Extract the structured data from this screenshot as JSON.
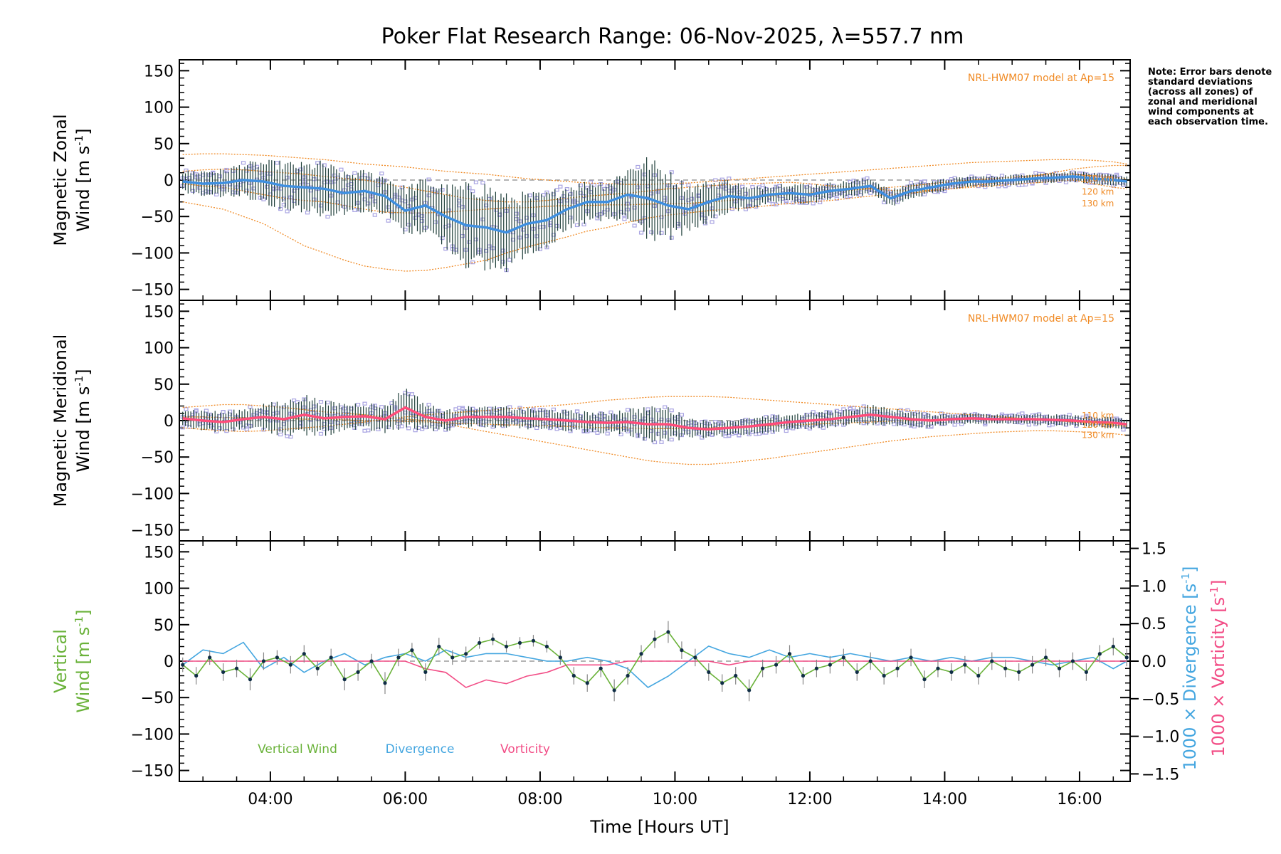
{
  "title": "Poker Flat Research Range: 06-Nov-2025, λ=557.7 nm",
  "side_note": "Note: Error bars denote standard deviations (across all zones) of zonal and meridional wind components at each observation time.",
  "x_axis": {
    "label": "Time [Hours UT]",
    "range": [
      2.65,
      16.75
    ],
    "ticks": [
      4,
      6,
      8,
      10,
      12,
      14,
      16
    ],
    "tick_labels": [
      "04:00",
      "06:00",
      "08:00",
      "10:00",
      "12:00",
      "14:00",
      "16:00"
    ]
  },
  "colors": {
    "zonal_mean": "#3f8fe0",
    "meridional_mean": "#ff4d7a",
    "scatter": "#a9a4e2",
    "model": "#f08a24",
    "errorbar": "#1f3f3a",
    "vertical": "#6ab23a",
    "divergence": "#44a6e0",
    "vorticity": "#f24d86",
    "points": "#0f2d45"
  },
  "chart_data": [
    {
      "id": "zonal",
      "type": "line",
      "ylabel_line1": "Magnetic Zonal",
      "ylabel_line2": "Wind [m s",
      "ylabel_exp": "-1",
      "ylabel_close": "]",
      "ylim": [
        -165,
        165
      ],
      "yticks": [
        -150,
        -100,
        -50,
        0,
        50,
        100,
        150
      ],
      "model_label": "NRL-HWM07 model at Ap=15",
      "model_heights": [
        "110 km",
        "120 km",
        "130 km"
      ],
      "x": [
        2.7,
        3.0,
        3.3,
        3.6,
        3.9,
        4.2,
        4.5,
        4.8,
        5.1,
        5.4,
        5.7,
        6.0,
        6.3,
        6.6,
        6.9,
        7.2,
        7.5,
        7.8,
        8.1,
        8.4,
        8.7,
        9.0,
        9.3,
        9.6,
        9.9,
        10.2,
        10.5,
        10.8,
        11.1,
        11.4,
        11.7,
        12.0,
        12.3,
        12.6,
        12.9,
        13.2,
        13.5,
        13.8,
        14.1,
        14.4,
        14.7,
        15.0,
        15.3,
        15.6,
        15.9,
        16.2,
        16.5,
        16.7
      ],
      "mean": [
        -2,
        -5,
        -4,
        0,
        -2,
        -8,
        -10,
        -12,
        -18,
        -15,
        -22,
        -42,
        -35,
        -50,
        -62,
        -65,
        -72,
        -60,
        -55,
        -40,
        -30,
        -30,
        -20,
        -25,
        -35,
        -40,
        -30,
        -22,
        -25,
        -20,
        -18,
        -20,
        -15,
        -12,
        -8,
        -25,
        -15,
        -10,
        -5,
        -2,
        -2,
        0,
        2,
        3,
        5,
        2,
        0,
        -2
      ],
      "spread": [
        15,
        20,
        20,
        25,
        30,
        35,
        35,
        40,
        30,
        30,
        30,
        35,
        40,
        45,
        60,
        65,
        55,
        45,
        40,
        35,
        30,
        30,
        40,
        60,
        50,
        35,
        30,
        25,
        15,
        15,
        15,
        15,
        12,
        12,
        12,
        12,
        12,
        10,
        8,
        8,
        8,
        8,
        8,
        8,
        8,
        8,
        8,
        8
      ],
      "model_110": [
        -5,
        -8,
        -10,
        -15,
        -20,
        -25,
        -28,
        -30,
        -35,
        -40,
        -44,
        -45,
        -45,
        -44,
        -42,
        -40,
        -38,
        -38,
        -36,
        -35,
        -35,
        -34,
        -34,
        -33,
        -32,
        -32,
        -30,
        -28,
        -25,
        -22,
        -20,
        -18,
        -16,
        -14,
        -12,
        -10,
        -8,
        -5,
        -2,
        0,
        2,
        4,
        6,
        8,
        8,
        6,
        4,
        2
      ],
      "model_120": [
        12,
        14,
        15,
        14,
        12,
        10,
        8,
        5,
        2,
        0,
        -5,
        -10,
        -15,
        -20,
        -25,
        -28,
        -30,
        -30,
        -28,
        -25,
        -22,
        -20,
        -18,
        -15,
        -12,
        -10,
        -8,
        -6,
        -5,
        -4,
        -3,
        -5,
        -8,
        -10,
        -12,
        -14,
        -15,
        -14,
        -12,
        -10,
        -8,
        -6,
        -4,
        -2,
        0,
        -5,
        -10,
        -12
      ],
      "model_130": [
        -30,
        -35,
        -40,
        -50,
        -60,
        -75,
        -90,
        -100,
        -110,
        -118,
        -122,
        -125,
        -124,
        -120,
        -115,
        -110,
        -100,
        -92,
        -85,
        -78,
        -70,
        -65,
        -58,
        -52,
        -48,
        -45,
        -42,
        -40,
        -38,
        -35,
        -32,
        -30,
        -28,
        -25,
        -22,
        -20,
        -18,
        -15,
        -12,
        -8,
        -5,
        0,
        5,
        10,
        15,
        18,
        20,
        20
      ],
      "model_top": [
        35,
        36,
        36,
        35,
        34,
        32,
        30,
        28,
        25,
        22,
        20,
        18,
        15,
        12,
        10,
        8,
        5,
        2,
        0,
        -2,
        -4,
        -5,
        -6,
        -6,
        -5,
        -4,
        -2,
        0,
        2,
        4,
        6,
        8,
        10,
        12,
        14,
        16,
        18,
        20,
        22,
        24,
        25,
        26,
        27,
        28,
        28,
        27,
        25,
        22
      ]
    },
    {
      "id": "meridional",
      "type": "line",
      "ylabel_line1": "Magnetic Meridional",
      "ylabel_line2": "Wind [m s",
      "ylabel_exp": "-1",
      "ylabel_close": "]",
      "ylim": [
        -165,
        165
      ],
      "yticks": [
        -150,
        -100,
        -50,
        0,
        50,
        100,
        150
      ],
      "model_label": "NRL-HWM07 model at Ap=15",
      "model_heights": [
        "110 km",
        "120 km",
        "130 km"
      ],
      "x": [
        2.7,
        3.0,
        3.3,
        3.6,
        3.9,
        4.2,
        4.5,
        4.8,
        5.1,
        5.4,
        5.7,
        6.0,
        6.3,
        6.6,
        6.9,
        7.2,
        7.5,
        7.8,
        8.1,
        8.4,
        8.7,
        9.0,
        9.3,
        9.6,
        9.9,
        10.2,
        10.5,
        10.8,
        11.1,
        11.4,
        11.7,
        12.0,
        12.3,
        12.6,
        12.9,
        13.2,
        13.5,
        13.8,
        14.1,
        14.4,
        14.7,
        15.0,
        15.3,
        15.6,
        15.9,
        16.2,
        16.5,
        16.7
      ],
      "mean": [
        3,
        0,
        -2,
        2,
        5,
        2,
        8,
        3,
        5,
        6,
        2,
        18,
        5,
        0,
        5,
        5,
        5,
        3,
        2,
        0,
        -2,
        -3,
        -2,
        -5,
        -5,
        -10,
        -12,
        -10,
        -8,
        -5,
        -2,
        0,
        2,
        5,
        8,
        5,
        2,
        0,
        2,
        3,
        2,
        2,
        2,
        1,
        0,
        -2,
        -3,
        -5
      ],
      "spread": [
        15,
        15,
        15,
        15,
        20,
        25,
        30,
        25,
        20,
        20,
        20,
        30,
        20,
        15,
        15,
        15,
        15,
        15,
        15,
        15,
        15,
        15,
        20,
        25,
        25,
        15,
        12,
        12,
        12,
        12,
        12,
        12,
        12,
        12,
        15,
        12,
        12,
        10,
        8,
        8,
        8,
        8,
        8,
        8,
        8,
        8,
        8,
        8
      ],
      "model_110": [
        5,
        5,
        4,
        4,
        3,
        3,
        2,
        2,
        1,
        0,
        0,
        -1,
        -2,
        -3,
        -4,
        -5,
        -6,
        -6,
        -7,
        -8,
        -9,
        -10,
        -10,
        -11,
        -11,
        -11,
        -10,
        -9,
        -8,
        -7,
        -6,
        -5,
        -4,
        -3,
        -2,
        -1,
        0,
        1,
        2,
        2,
        3,
        3,
        2,
        1,
        0,
        -2,
        -4,
        -6
      ],
      "model_120": [
        18,
        20,
        22,
        22,
        20,
        18,
        15,
        12,
        10,
        8,
        5,
        2,
        0,
        -5,
        -10,
        -15,
        -20,
        -25,
        -30,
        -35,
        -40,
        -45,
        -50,
        -55,
        -58,
        -60,
        -60,
        -58,
        -55,
        -52,
        -48,
        -44,
        -40,
        -36,
        -32,
        -28,
        -25,
        -22,
        -20,
        -18,
        -16,
        -15,
        -14,
        -14,
        -15,
        -16,
        -18,
        -20
      ],
      "model_130": [
        -10,
        -12,
        -14,
        -15,
        -14,
        -12,
        -10,
        -8,
        -5,
        -2,
        2,
        5,
        8,
        10,
        12,
        14,
        16,
        18,
        20,
        22,
        25,
        28,
        30,
        32,
        33,
        33,
        33,
        32,
        30,
        28,
        26,
        24,
        22,
        20,
        18,
        16,
        14,
        12,
        10,
        8,
        6,
        4,
        2,
        0,
        -2,
        -4,
        -6,
        -8
      ]
    },
    {
      "id": "vertical",
      "type": "line",
      "ylabel_line1": "Vertical",
      "ylabel_line2": "Wind [m s",
      "ylabel_exp": "-1",
      "ylabel_close": "]",
      "ylim": [
        -165,
        165
      ],
      "yticks": [
        -150,
        -100,
        -50,
        0,
        50,
        100,
        150
      ],
      "right_ylim": [
        -1.6,
        1.6
      ],
      "right_yticks": [
        -1.5,
        -1.0,
        -0.5,
        0.0,
        0.5,
        1.0,
        1.5
      ],
      "right_ytick_labels": [
        "−1.5",
        "−1.0",
        "−0.5",
        "0.0",
        "0.5",
        "1.0",
        "1.5"
      ],
      "right_label_1": "1000 × Divergence [s",
      "right_label_2": "1000 × Vorticity [s",
      "right_label_exp": "-1",
      "right_label_close": "]",
      "legend": [
        "Vertical Wind",
        "Divergence",
        "Vorticity"
      ],
      "vertical": {
        "x": [
          2.7,
          2.9,
          3.1,
          3.3,
          3.5,
          3.7,
          3.9,
          4.1,
          4.3,
          4.5,
          4.7,
          4.9,
          5.1,
          5.3,
          5.5,
          5.7,
          5.9,
          6.1,
          6.3,
          6.5,
          6.7,
          6.9,
          7.1,
          7.3,
          7.5,
          7.7,
          7.9,
          8.1,
          8.3,
          8.5,
          8.7,
          8.9,
          9.1,
          9.3,
          9.5,
          9.7,
          9.9,
          10.1,
          10.3,
          10.5,
          10.7,
          10.9,
          11.1,
          11.3,
          11.5,
          11.7,
          11.9,
          12.1,
          12.3,
          12.5,
          12.7,
          12.9,
          13.1,
          13.3,
          13.5,
          13.7,
          13.9,
          14.1,
          14.3,
          14.5,
          14.7,
          14.9,
          15.1,
          15.3,
          15.5,
          15.7,
          15.9,
          16.1,
          16.3,
          16.5,
          16.7
        ],
        "y": [
          -5,
          -20,
          5,
          -15,
          -10,
          -25,
          0,
          5,
          -5,
          10,
          -10,
          5,
          -25,
          -15,
          0,
          -30,
          5,
          15,
          -15,
          20,
          5,
          10,
          25,
          30,
          20,
          25,
          28,
          20,
          5,
          -20,
          -30,
          -10,
          -40,
          -20,
          10,
          30,
          40,
          15,
          5,
          -15,
          -30,
          -20,
          -40,
          -10,
          -5,
          10,
          -20,
          -10,
          -5,
          5,
          -15,
          0,
          -20,
          -10,
          5,
          -25,
          -10,
          -15,
          -5,
          -20,
          0,
          -10,
          -15,
          -5,
          5,
          -10,
          0,
          -15,
          10,
          20,
          5
        ],
        "err": [
          10,
          12,
          10,
          12,
          12,
          15,
          12,
          10,
          12,
          12,
          10,
          12,
          15,
          12,
          10,
          15,
          12,
          10,
          12,
          12,
          10,
          10,
          8,
          8,
          8,
          8,
          8,
          8,
          10,
          12,
          12,
          12,
          15,
          12,
          12,
          12,
          15,
          12,
          12,
          12,
          12,
          12,
          15,
          12,
          12,
          12,
          12,
          12,
          12,
          12,
          12,
          12,
          12,
          12,
          12,
          12,
          12,
          12,
          12,
          12,
          12,
          12,
          12,
          12,
          12,
          12,
          12,
          12,
          12,
          12,
          12
        ]
      },
      "divergence": {
        "x": [
          2.7,
          3.0,
          3.3,
          3.6,
          3.9,
          4.2,
          4.5,
          4.8,
          5.1,
          5.4,
          5.7,
          6.0,
          6.3,
          6.6,
          6.9,
          7.2,
          7.5,
          7.8,
          8.1,
          8.4,
          8.7,
          9.0,
          9.3,
          9.6,
          9.9,
          10.2,
          10.5,
          10.8,
          11.1,
          11.4,
          11.7,
          12.0,
          12.3,
          12.6,
          12.9,
          13.2,
          13.5,
          13.8,
          14.1,
          14.4,
          14.7,
          15.0,
          15.3,
          15.6,
          15.9,
          16.2,
          16.5,
          16.7
        ],
        "y": [
          -0.05,
          0.15,
          0.1,
          0.25,
          -0.1,
          0.05,
          -0.15,
          0.0,
          0.1,
          -0.05,
          0.05,
          0.1,
          0.0,
          0.15,
          0.05,
          0.1,
          0.1,
          0.05,
          0.0,
          0.0,
          0.05,
          0.0,
          -0.1,
          -0.35,
          -0.2,
          0.0,
          0.2,
          0.1,
          0.05,
          0.15,
          0.05,
          0.1,
          0.05,
          0.1,
          0.05,
          0.0,
          0.05,
          0.0,
          0.05,
          0.0,
          0.05,
          0.05,
          0.0,
          -0.05,
          0.0,
          0.05,
          -0.1,
          0.0
        ]
      },
      "vorticity": {
        "x": [
          2.7,
          3.0,
          3.3,
          3.6,
          3.9,
          4.2,
          4.5,
          4.8,
          5.1,
          5.4,
          5.7,
          6.0,
          6.3,
          6.6,
          6.9,
          7.2,
          7.5,
          7.8,
          8.1,
          8.4,
          8.7,
          9.0,
          9.3,
          9.6,
          9.9,
          10.2,
          10.5,
          10.8,
          11.1,
          11.4,
          11.7,
          12.0,
          12.3,
          12.6,
          12.9,
          13.2,
          13.5,
          13.8,
          14.1,
          14.4,
          14.7,
          15.0,
          15.3,
          15.6,
          15.9,
          16.2,
          16.5,
          16.7
        ],
        "y": [
          0.0,
          0.0,
          0.0,
          0.0,
          0.0,
          0.0,
          0.0,
          0.0,
          0.0,
          0.0,
          0.0,
          0.0,
          -0.1,
          -0.15,
          -0.35,
          -0.25,
          -0.3,
          -0.2,
          -0.15,
          -0.05,
          -0.05,
          -0.05,
          0.0,
          0.0,
          0.0,
          0.0,
          0.0,
          -0.05,
          0.0,
          0.0,
          0.0,
          0.0,
          0.0,
          0.0,
          0.0,
          0.0,
          0.0,
          0.0,
          0.0,
          0.0,
          0.0,
          0.0,
          0.0,
          0.0,
          0.0,
          0.0,
          0.0,
          0.0
        ]
      }
    }
  ]
}
